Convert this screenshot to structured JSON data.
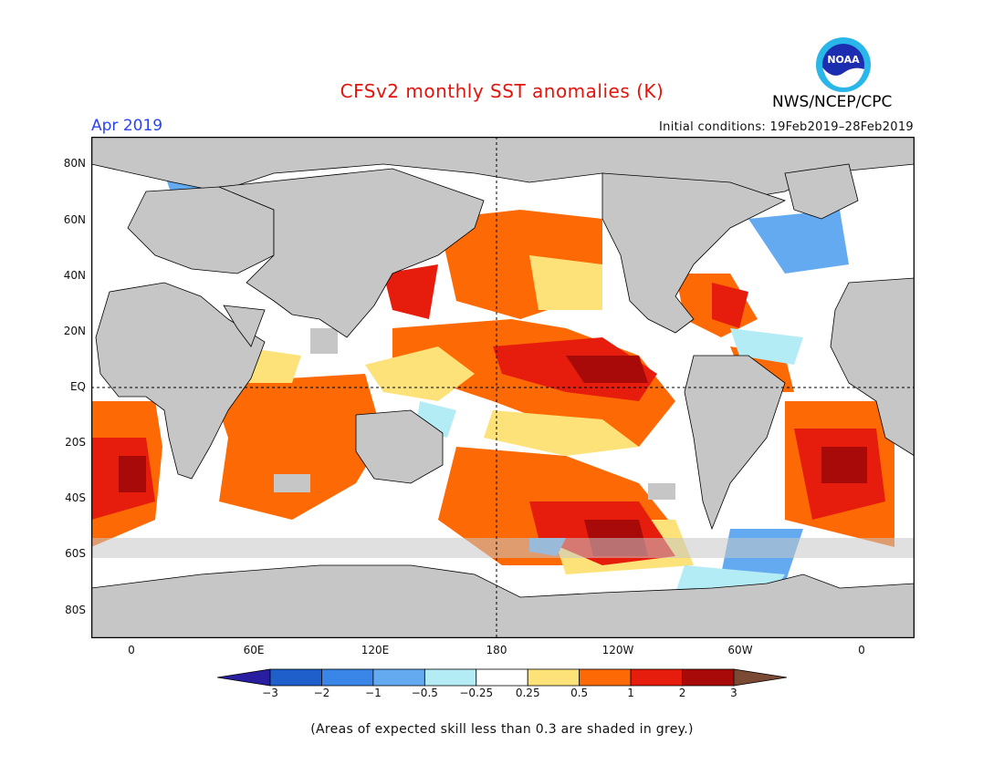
{
  "header": {
    "title": "CFSv2 monthly SST anomalies (K)",
    "month": "Apr 2019",
    "initial_conditions": "Initial conditions: 19Feb2019–28Feb2019",
    "organization": "NWS/NCEP/CPC",
    "logo_text": "NOAA"
  },
  "axes": {
    "lat_labels": [
      "80N",
      "60N",
      "40N",
      "20N",
      "EQ",
      "20S",
      "40S",
      "60S",
      "80S"
    ],
    "lon_labels": [
      "0",
      "60E",
      "120E",
      "180",
      "120W",
      "60W",
      "0"
    ]
  },
  "colorbar": {
    "labels": [
      "−3",
      "−2",
      "−1",
      "−0.5",
      "−0.25",
      "0.25",
      "0.5",
      "1",
      "2",
      "3"
    ],
    "colors": [
      "#2a1ea0",
      "#1f5fcc",
      "#3a86e8",
      "#64aaf0",
      "#b4ecf6",
      "#ffffff",
      "#fde27a",
      "#fd6a05",
      "#e61c0c",
      "#a80a0a",
      "#7a4a35"
    ]
  },
  "map": {
    "land_color": "#c6c6c6",
    "skill_mask_color": "#c6c6c6"
  },
  "footnote": "(Areas of expected skill less than 0.3 are shaded in grey.)"
}
